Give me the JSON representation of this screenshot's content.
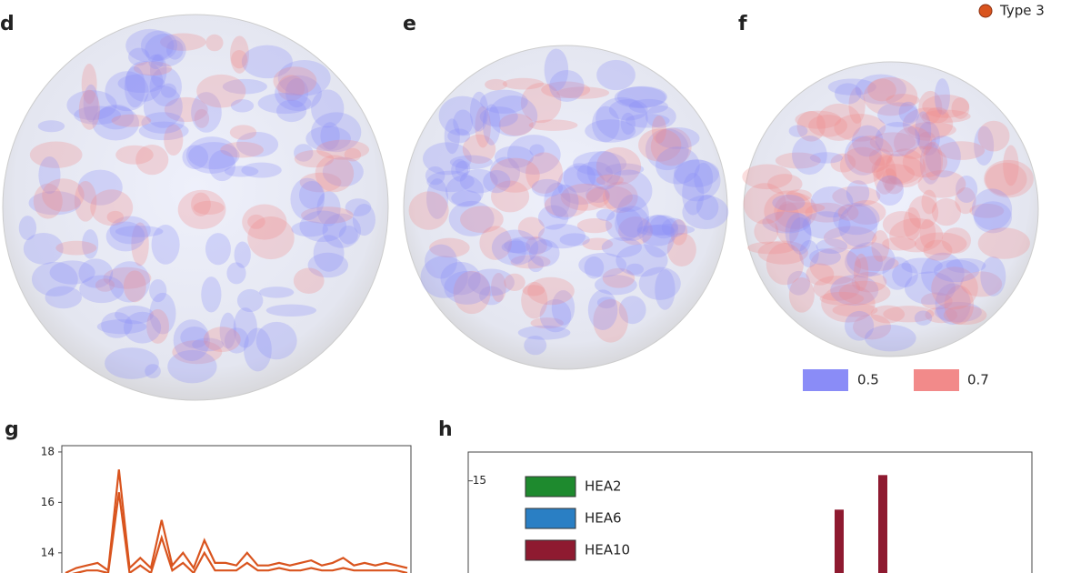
{
  "legend_top": {
    "label": "Type 3",
    "color": "#d9541e"
  },
  "panels": [
    {
      "label": "d"
    },
    {
      "label": "e"
    },
    {
      "label": "f"
    }
  ],
  "colorbar": [
    {
      "label": "0.5",
      "color": "#8a8cf7"
    },
    {
      "label": "0.7",
      "color": "#f28a8a"
    }
  ],
  "charts": [
    {
      "label": "g",
      "type": "line",
      "ylim": [
        13.2,
        18.25
      ],
      "yticks": [
        14,
        16,
        18
      ],
      "series": [
        {
          "color": "#d9541e",
          "values": [
            13.2,
            13.4,
            13.5,
            13.6,
            13.3,
            17.3,
            13.4,
            13.8,
            13.4,
            15.3,
            13.5,
            14.0,
            13.4,
            14.5,
            13.6,
            13.6,
            13.5,
            14.0,
            13.5,
            13.5,
            13.6,
            13.5,
            13.6,
            13.7,
            13.5,
            13.6,
            13.8,
            13.5,
            13.6,
            13.5,
            13.6,
            13.5,
            13.4
          ]
        },
        {
          "color": "#d9541e",
          "values": [
            13.1,
            13.2,
            13.3,
            13.3,
            13.2,
            16.4,
            13.2,
            13.5,
            13.2,
            14.6,
            13.3,
            13.6,
            13.2,
            14.0,
            13.3,
            13.3,
            13.3,
            13.6,
            13.3,
            13.3,
            13.4,
            13.3,
            13.3,
            13.4,
            13.3,
            13.3,
            13.4,
            13.3,
            13.3,
            13.3,
            13.3,
            13.3,
            13.2
          ]
        }
      ]
    },
    {
      "label": "h",
      "type": "bar",
      "ylim": [
        11.8,
        16.0
      ],
      "yticks": [
        15
      ],
      "series": [
        {
          "name": "HEA2",
          "color": "#1e8a2e",
          "values": [
            null,
            null
          ]
        },
        {
          "name": "HEA6",
          "color": "#2a7fc4",
          "values": [
            null,
            null
          ]
        },
        {
          "name": "HEA10",
          "color": "#8e1a30",
          "values": [
            14.0,
            15.2
          ]
        }
      ]
    }
  ]
}
